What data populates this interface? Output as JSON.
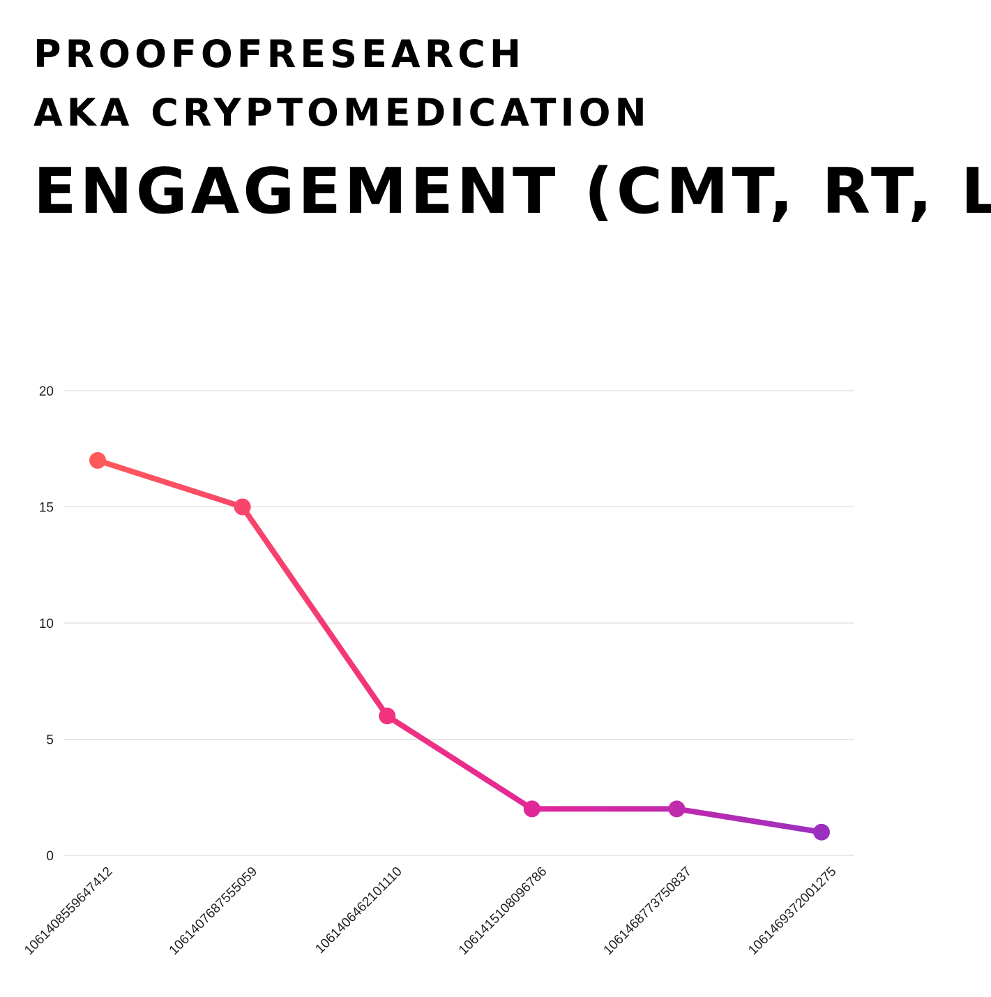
{
  "header": {
    "subtitle_1": "PROOFOFRESEARCH",
    "subtitle_2": "AKA CRYPTOMEDICATION",
    "title": "ENGAGEMENT (CMT, RT, L)"
  },
  "chart_data": {
    "type": "line",
    "categories": [
      "1061408559647412",
      "1061407687555059",
      "1061406462101110",
      "1061415108096786",
      "1061468773750837",
      "1061469372001275"
    ],
    "series": [
      {
        "values": [
          17,
          15,
          6,
          2,
          2,
          1
        ]
      }
    ],
    "yticks": [
      0,
      5,
      10,
      15,
      20
    ],
    "ylim": [
      0,
      20
    ],
    "grid": true,
    "legend": "none",
    "colors": {
      "gradient_start": "#ff5a5a",
      "gradient_mid": "#f2347a",
      "gradient_mid2": "#e0269a",
      "gradient_end": "#9b2fbf",
      "grid": "#d4d4d4"
    }
  }
}
